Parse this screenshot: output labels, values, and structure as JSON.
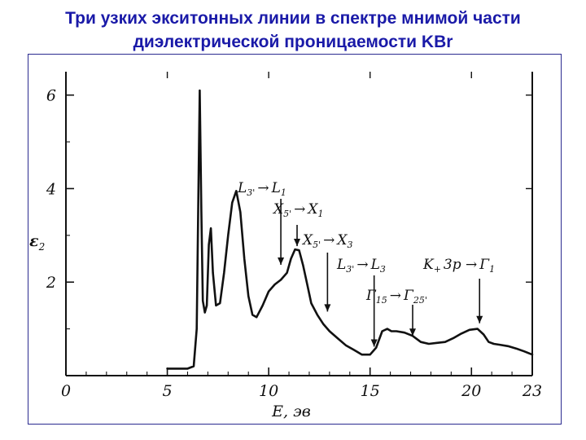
{
  "slide": {
    "title_line1": "Три узких экситонных линии в спектре мнимой части",
    "title_line2": "диэлектрической проницаемости KBr"
  },
  "chart_data": {
    "type": "line",
    "xlabel": "E, эв",
    "ylabel": "ε",
    "ylabel_sub": "2",
    "xlim": [
      0,
      23
    ],
    "ylim": [
      0,
      6.5
    ],
    "x_ticks": [
      0,
      5,
      10,
      15,
      20,
      23
    ],
    "y_ticks": [
      2,
      4,
      6
    ],
    "x_tick_labels": [
      "0",
      "5",
      "10",
      "15",
      "20",
      "23"
    ],
    "y_tick_labels": [
      "2",
      "4",
      "6"
    ],
    "grid": false,
    "series": [
      {
        "x": [
          5.0,
          6.0,
          6.3,
          6.45,
          6.55,
          6.6,
          6.68,
          6.75,
          6.85,
          6.95,
          7.05,
          7.15,
          7.25,
          7.4,
          7.6,
          7.8,
          8.0,
          8.2,
          8.4,
          8.6,
          8.8,
          9.0,
          9.2,
          9.4,
          9.7,
          10.0,
          10.3,
          10.6,
          10.9,
          11.1,
          11.3,
          11.5,
          11.7,
          11.9,
          12.1,
          12.4,
          12.7,
          13.0,
          13.4,
          13.8,
          14.2,
          14.6,
          15.0,
          15.3,
          15.6,
          15.85,
          16.05,
          16.3,
          16.7,
          17.1,
          17.5,
          17.9,
          18.3,
          18.7,
          19.1,
          19.5,
          19.9,
          20.3,
          20.6,
          20.85,
          21.1,
          21.4,
          21.8,
          22.2,
          22.6,
          23.0
        ],
        "y": [
          0.15,
          0.15,
          0.2,
          1.0,
          4.5,
          6.1,
          3.5,
          1.6,
          1.35,
          1.5,
          2.8,
          3.15,
          2.2,
          1.5,
          1.55,
          2.2,
          3.0,
          3.7,
          3.95,
          3.5,
          2.5,
          1.7,
          1.3,
          1.25,
          1.5,
          1.8,
          1.95,
          2.05,
          2.2,
          2.5,
          2.7,
          2.68,
          2.35,
          1.95,
          1.55,
          1.3,
          1.1,
          0.95,
          0.8,
          0.65,
          0.55,
          0.45,
          0.45,
          0.6,
          0.95,
          1.0,
          0.95,
          0.95,
          0.92,
          0.85,
          0.72,
          0.68,
          0.7,
          0.72,
          0.8,
          0.9,
          0.98,
          1.0,
          0.88,
          0.72,
          0.68,
          0.66,
          0.63,
          0.58,
          0.52,
          0.45
        ]
      }
    ],
    "annotations": [
      {
        "base": "L",
        "sub": "3'",
        "arrow": "→",
        "base2": "L",
        "sub2": "1",
        "x": 10.6,
        "y_to": 2.3
      },
      {
        "base": "X",
        "sub": "5'",
        "arrow": "→",
        "base2": "X",
        "sub2": "1",
        "x": 11.4,
        "y_to": 2.7
      },
      {
        "base": "X",
        "sub": "5'",
        "arrow": "→",
        "base2": "X",
        "sub2": "3",
        "x": 12.9,
        "y_to": 1.3
      },
      {
        "base": "L",
        "sub": "3'",
        "arrow": "→",
        "base2": "L",
        "sub2": "3",
        "x": 15.2,
        "y_to": 0.55
      },
      {
        "base": "Γ",
        "sub": "15",
        "arrow": "→",
        "base2": "Γ",
        "sub2": "25'",
        "x": 17.1,
        "y_to": 0.78
      },
      {
        "base": "K",
        "sub": "+",
        "arrow": "3p →",
        "base2": "Γ",
        "sub2": "1",
        "x": 20.4,
        "y_to": 1.05
      }
    ]
  }
}
